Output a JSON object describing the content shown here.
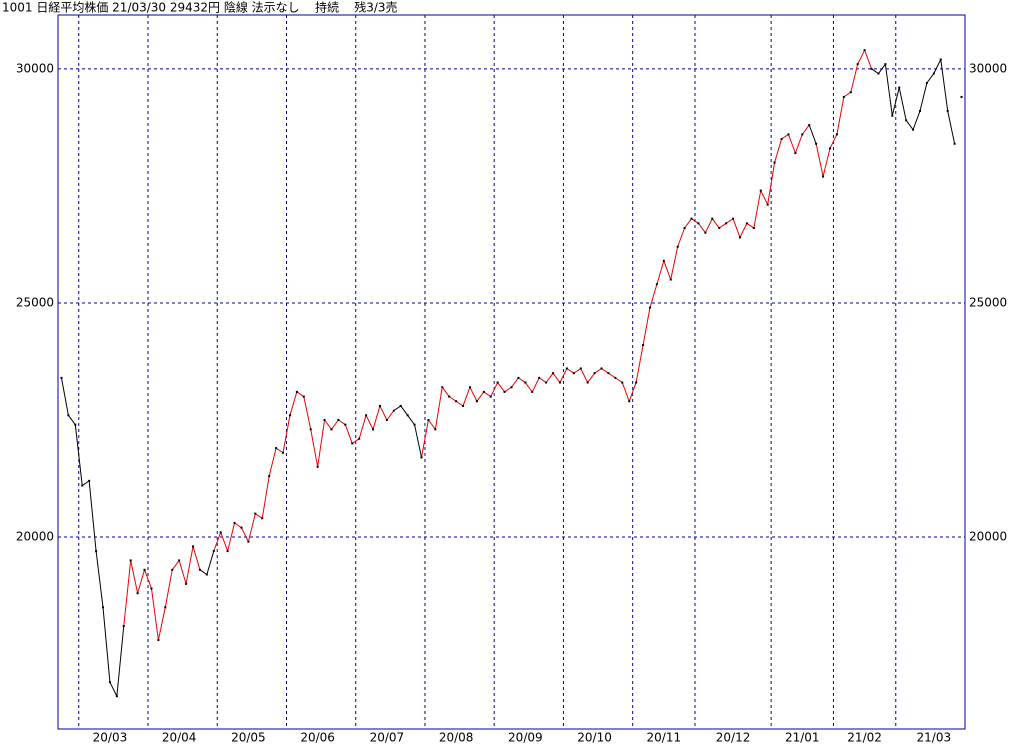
{
  "chart_data": {
    "type": "line",
    "title": "1001 日経平均株価 21/03/30 29432円 陰線 法示なし    持続    残3/3売",
    "categories": [
      null,
      null,
      null,
      null,
      null,
      null,
      null,
      "20/03",
      null,
      null,
      null,
      null,
      null,
      null,
      null,
      null,
      null,
      "20/04",
      null,
      null,
      null,
      null,
      null,
      null,
      null,
      null,
      null,
      "20/05",
      null,
      null,
      null,
      null,
      null,
      null,
      null,
      null,
      null,
      "20/06",
      null,
      null,
      null,
      null,
      null,
      null,
      null,
      null,
      null,
      "20/07",
      null,
      null,
      null,
      null,
      null,
      null,
      null,
      null,
      null,
      "20/08",
      null,
      null,
      null,
      null,
      null,
      null,
      null,
      null,
      null,
      "20/09",
      null,
      null,
      null,
      null,
      null,
      null,
      null,
      null,
      null,
      "20/10",
      null,
      null,
      null,
      null,
      null,
      null,
      null,
      null,
      null,
      "20/11",
      null,
      null,
      null,
      null,
      null,
      null,
      null,
      null,
      null,
      "20/12",
      null,
      null,
      null,
      null,
      null,
      null,
      null,
      null,
      null,
      "21/01",
      null,
      null,
      null,
      null,
      null,
      null,
      null,
      null,
      "21/02",
      null,
      null,
      null,
      null,
      null,
      null,
      null,
      null,
      null,
      "21/03",
      null,
      null,
      null,
      null
    ],
    "values": [
      23400,
      22600,
      22400,
      21100,
      21200,
      19700,
      18500,
      16900,
      16600,
      18100,
      19500,
      18800,
      19300,
      18900,
      17800,
      18500,
      19300,
      19500,
      19000,
      19800,
      19300,
      19200,
      19700,
      20100,
      19700,
      20300,
      20200,
      19900,
      20500,
      20400,
      21300,
      21900,
      21800,
      22600,
      23100,
      23000,
      22300,
      21500,
      22500,
      22300,
      22500,
      22400,
      22000,
      22100,
      22600,
      22300,
      22800,
      22500,
      22700,
      22800,
      22600,
      22400,
      21700,
      22500,
      22300,
      23200,
      23000,
      22900,
      22800,
      23200,
      22900,
      23100,
      23000,
      23300,
      23100,
      23200,
      23400,
      23300,
      23100,
      23400,
      23300,
      23500,
      23300,
      23600,
      23500,
      23600,
      23300,
      23500,
      23600,
      23500,
      23400,
      23300,
      22900,
      23300,
      24100,
      24900,
      25400,
      25900,
      25500,
      26200,
      26600,
      26800,
      26700,
      26500,
      26800,
      26600,
      26700,
      26800,
      26400,
      26700,
      26600,
      27400,
      27100,
      28000,
      28500,
      28600,
      28200,
      28600,
      28800,
      28400,
      27700,
      28300,
      28600,
      29400,
      29500,
      30100,
      30400,
      30000,
      29900,
      30100,
      29000,
      29600,
      28900,
      28700,
      29100,
      29700,
      29900,
      30200,
      29100,
      28400,
      29400
    ],
    "colors": [
      "#000",
      "#000",
      "#000",
      "#000",
      "#000",
      "#000",
      "#000",
      "#000",
      "#000",
      "#000",
      "#e00",
      "#e00",
      "#e00",
      "#e00",
      "#e00",
      "#e00",
      "#e00",
      "#e00",
      "#e00",
      "#e00",
      "#e00",
      "#000",
      "#000",
      "#e00",
      "#e00",
      "#e00",
      "#e00",
      "#e00",
      "#e00",
      "#e00",
      "#e00",
      "#e00",
      "#e00",
      "#e00",
      "#e00",
      "#e00",
      "#e00",
      "#e00",
      "#e00",
      "#e00",
      "#e00",
      "#e00",
      "#e00",
      "#e00",
      "#e00",
      "#e00",
      "#e00",
      "#e00",
      "#e00",
      "#000",
      "#000",
      "#000",
      "#000",
      "#e00",
      "#e00",
      "#e00",
      "#e00",
      "#e00",
      "#e00",
      "#e00",
      "#e00",
      "#e00",
      "#e00",
      "#e00",
      "#e00",
      "#e00",
      "#e00",
      "#e00",
      "#e00",
      "#e00",
      "#e00",
      "#e00",
      "#e00",
      "#e00",
      "#e00",
      "#e00",
      "#e00",
      "#e00",
      "#e00",
      "#e00",
      "#e00",
      "#e00",
      "#e00",
      "#e00",
      "#e00",
      "#e00",
      "#e00",
      "#e00",
      "#e00",
      "#e00",
      "#e00",
      "#e00",
      "#e00",
      "#e00",
      "#e00",
      "#e00",
      "#e00",
      "#e00",
      "#e00",
      "#e00",
      "#e00",
      "#e00",
      "#e00",
      "#e00",
      "#e00",
      "#e00",
      "#e00",
      "#e00",
      "#e00",
      "#000",
      "#e00",
      "#e00",
      "#e00",
      "#e00",
      "#e00",
      "#e00",
      "#e00",
      "#e00",
      "#000",
      "#000",
      "#000",
      "#000",
      "#000",
      "#000",
      "#000",
      "#000",
      "#000",
      "#000",
      "#000",
      "#000"
    ],
    "xticks": [
      2.5,
      12.5,
      22.5,
      32.5,
      42.5,
      52.5,
      62.5,
      72.5,
      82.5,
      91.5,
      102.5,
      111.5,
      120.5
    ],
    "ylim": [
      15900,
      31150
    ],
    "yticks": [
      20000,
      25000,
      30000
    ],
    "grid": true
  }
}
